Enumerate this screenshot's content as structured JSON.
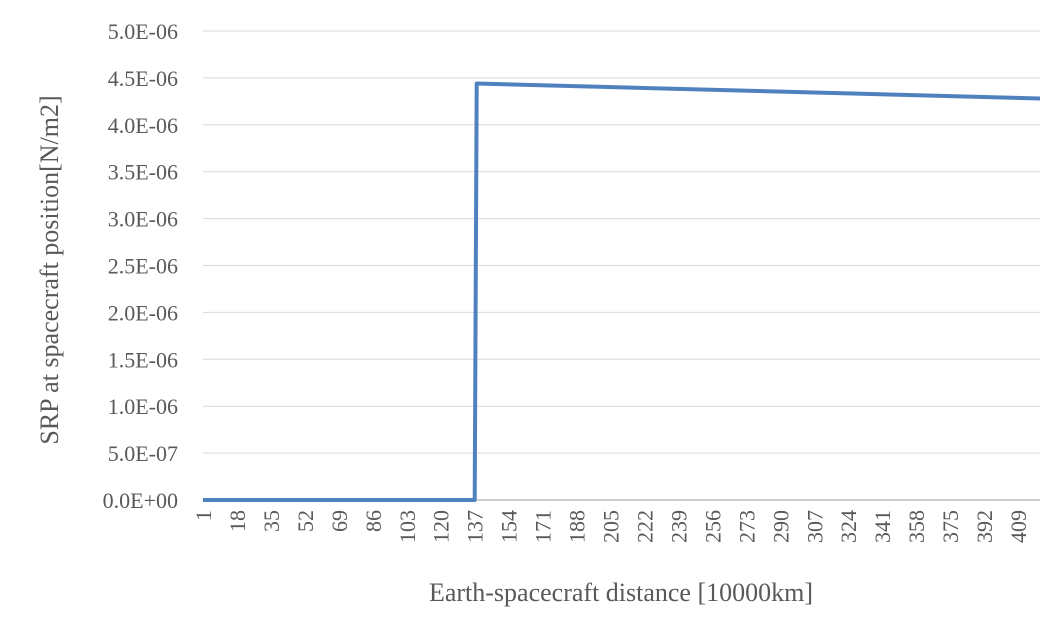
{
  "chart_data": {
    "type": "line",
    "xlabel": "Earth-spacecraft distance [10000km]",
    "ylabel": "SRP at spacecraft position[N/m2]",
    "ylim": [
      0,
      5e-06
    ],
    "yticks": [
      "0.0E+00",
      "5.0E-07",
      "1.0E-06",
      "1.5E-06",
      "2.0E-06",
      "2.5E-06",
      "3.0E-06",
      "3.5E-06",
      "4.0E-06",
      "4.5E-06",
      "5.0E-06"
    ],
    "xlim": [
      1,
      420
    ],
    "xticks": [
      "1",
      "18",
      "35",
      "52",
      "69",
      "86",
      "103",
      "120",
      "137",
      "154",
      "171",
      "188",
      "205",
      "222",
      "239",
      "256",
      "273",
      "290",
      "307",
      "324",
      "341",
      "358",
      "375",
      "392",
      "409"
    ],
    "grid": true,
    "legend": "none",
    "series": [
      {
        "color": "#4f81bd",
        "x": [
          1,
          137,
          137,
          138,
          420
        ],
        "y": [
          0,
          0,
          0,
          4.44e-06,
          4.28e-06
        ]
      }
    ]
  }
}
